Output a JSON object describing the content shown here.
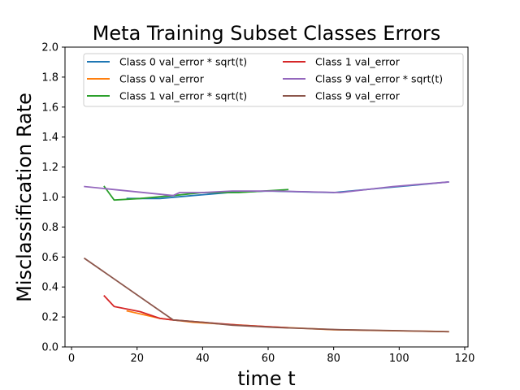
{
  "chart_data": {
    "type": "line",
    "title": "Meta Training Subset Classes Errors",
    "xlabel": "time t",
    "ylabel": "Misclassification Rate",
    "xlim": [
      -2,
      121
    ],
    "ylim": [
      0,
      2.0
    ],
    "xticks": [
      0,
      20,
      40,
      60,
      80,
      100,
      120
    ],
    "yticks": [
      0.0,
      0.2,
      0.4,
      0.6,
      0.8,
      1.0,
      1.2,
      1.4,
      1.6,
      1.8,
      2.0
    ],
    "grid": false,
    "legend_placement": "top",
    "series": [
      {
        "name": "Class 0 val_error * sqrt(t)",
        "color": "#1f77b4",
        "x": [
          17,
          27,
          37,
          48,
          60,
          80,
          95,
          110,
          115
        ],
        "y": [
          0.99,
          0.99,
          1.01,
          1.03,
          1.04,
          1.03,
          1.06,
          1.09,
          1.1
        ]
      },
      {
        "name": "Class 0 val_error",
        "color": "#ff7f0e",
        "x": [
          17,
          27,
          37,
          48,
          60,
          80,
          95,
          110,
          115
        ],
        "y": [
          0.24,
          0.19,
          0.165,
          0.15,
          0.135,
          0.115,
          0.109,
          0.104,
          0.102
        ]
      },
      {
        "name": "Class 1 val_error * sqrt(t)",
        "color": "#2ca02c",
        "x": [
          10,
          13,
          21,
          31,
          40,
          51,
          66
        ],
        "y": [
          1.07,
          0.98,
          0.99,
          1.01,
          1.03,
          1.03,
          1.05
        ]
      },
      {
        "name": "Class 1 val_error",
        "color": "#d62728",
        "x": [
          10,
          13,
          21,
          27,
          31,
          40,
          51,
          66
        ],
        "y": [
          0.34,
          0.27,
          0.235,
          0.19,
          0.18,
          0.165,
          0.145,
          0.128
        ]
      },
      {
        "name": "Class 9 val_error * sqrt(t)",
        "color": "#9467bd",
        "x": [
          4,
          31,
          33,
          40,
          49,
          62,
          82,
          98,
          115
        ],
        "y": [
          1.07,
          1.01,
          1.03,
          1.03,
          1.04,
          1.04,
          1.03,
          1.07,
          1.1
        ]
      },
      {
        "name": "Class 9 val_error",
        "color": "#8c564b",
        "x": [
          4,
          31,
          40,
          49,
          62,
          82,
          98,
          115
        ],
        "y": [
          0.59,
          0.18,
          0.165,
          0.145,
          0.13,
          0.115,
          0.109,
          0.102
        ]
      }
    ]
  }
}
